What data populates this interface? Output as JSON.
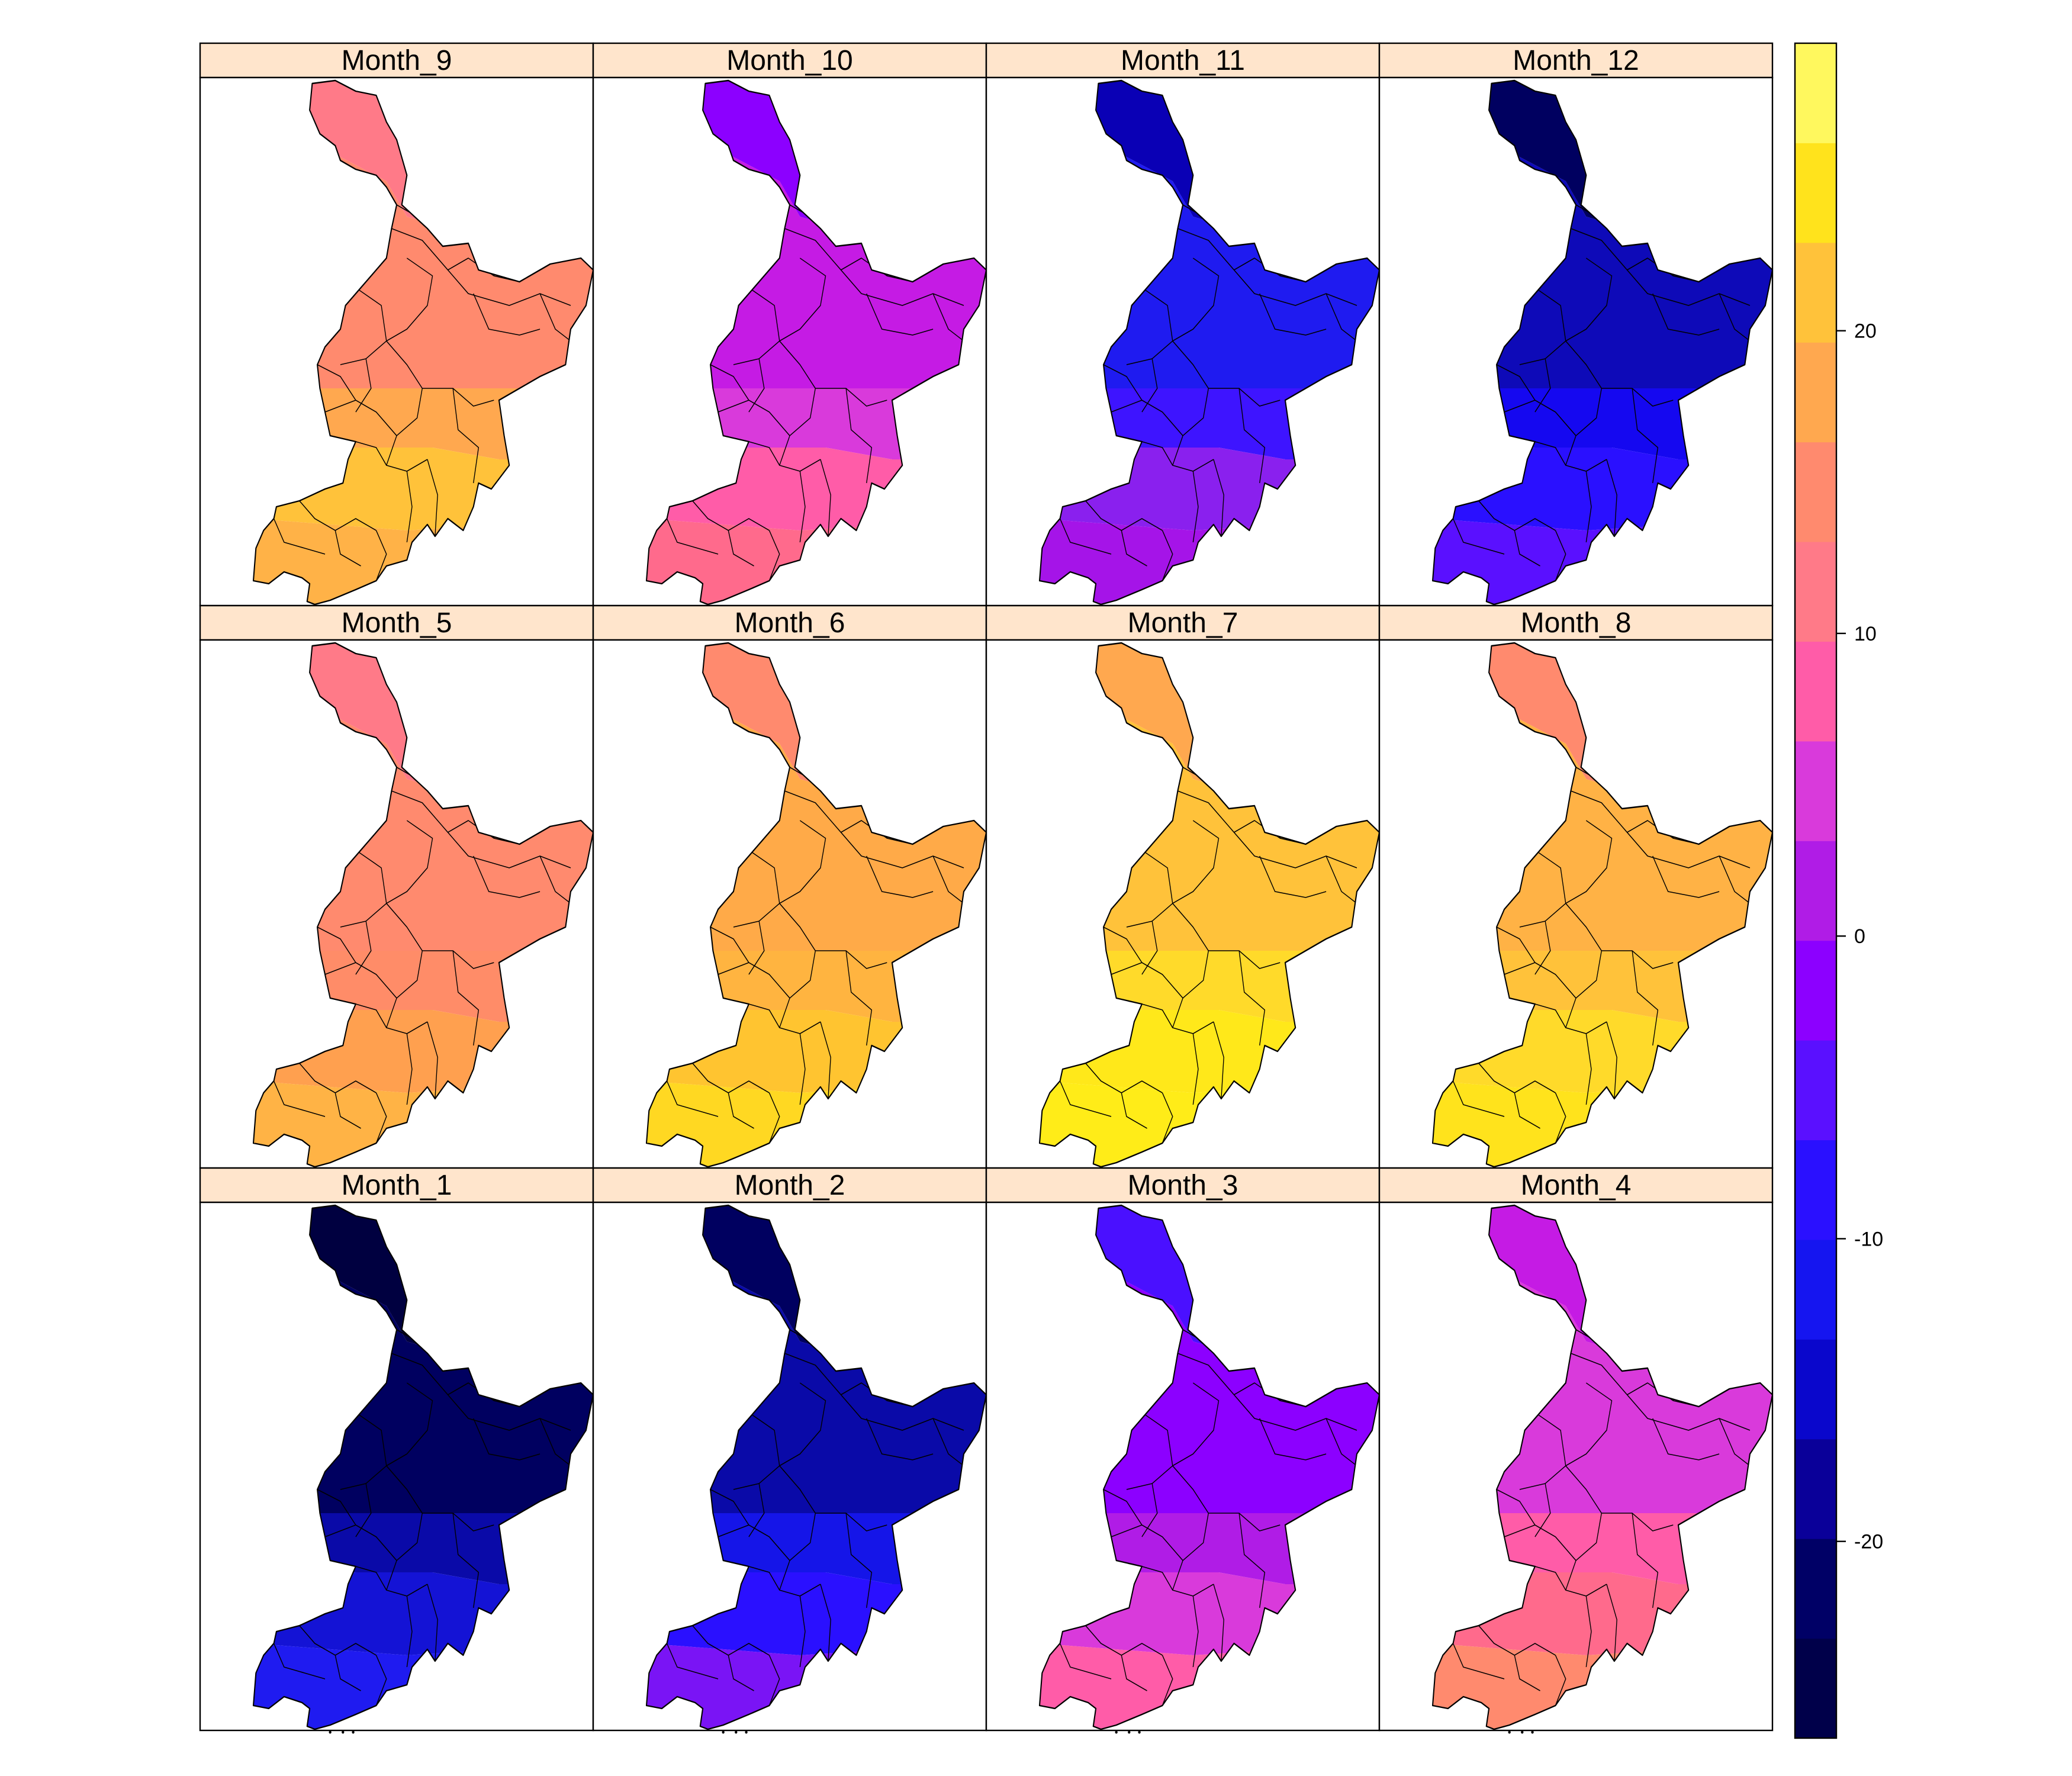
{
  "figure": {
    "panels": [
      {
        "title": "Month_9",
        "colors": [
          "#FF7A88",
          "#FF8A6E",
          "#FFA84F",
          "#FFC23A",
          "#FFB247"
        ]
      },
      {
        "title": "Month_10",
        "colors": [
          "#8C00FF",
          "#C51BE4",
          "#D93ADB",
          "#FF5CA8",
          "#FF6A8C"
        ]
      },
      {
        "title": "Month_11",
        "colors": [
          "#0A00B5",
          "#1F1BF0",
          "#3E14FF",
          "#8A20EE",
          "#A514E8"
        ]
      },
      {
        "title": "Month_12",
        "colors": [
          "#000060",
          "#0E0AB8",
          "#1508F0",
          "#2A10FF",
          "#5A10FF"
        ]
      },
      {
        "title": "Month_5",
        "colors": [
          "#FF7A88",
          "#FF8A6E",
          "#FF8C68",
          "#FFA04F",
          "#FFB345"
        ]
      },
      {
        "title": "Month_6",
        "colors": [
          "#FF8A6E",
          "#FFAA48",
          "#FFB440",
          "#FFC430",
          "#FFD822"
        ]
      },
      {
        "title": "Month_7",
        "colors": [
          "#FFA84F",
          "#FFC23A",
          "#FFDA2A",
          "#FFE81A",
          "#FFEC18"
        ]
      },
      {
        "title": "Month_8",
        "colors": [
          "#FF8A6E",
          "#FFB245",
          "#FFC23A",
          "#FFDA2A",
          "#FFE31C"
        ]
      },
      {
        "title": "Month_1",
        "colors": [
          "#000040",
          "#000060",
          "#0A0AA8",
          "#1413D5",
          "#1F1BF0"
        ]
      },
      {
        "title": "Month_2",
        "colors": [
          "#000060",
          "#0A0AA8",
          "#1515E8",
          "#2A10FF",
          "#7A14F5"
        ]
      },
      {
        "title": "Month_3",
        "colors": [
          "#4A10FF",
          "#8C00FF",
          "#B01CE6",
          "#D93ADB",
          "#FF5CA8"
        ]
      },
      {
        "title": "Month_4",
        "colors": [
          "#C51BE4",
          "#D93ADB",
          "#FF5CA8",
          "#FF6A8C",
          "#FF8A6E"
        ]
      }
    ]
  },
  "colorkey": {
    "ticks": [
      {
        "label": "-20",
        "value": -20
      },
      {
        "label": "-10",
        "value": -10
      },
      {
        "label": "0",
        "value": 0
      },
      {
        "label": "10",
        "value": 10
      },
      {
        "label": "20",
        "value": 20
      }
    ],
    "min": -26.5,
    "max": 29.5,
    "colors": [
      "#00004A",
      "#000066",
      "#0A0099",
      "#0A07CC",
      "#1515F0",
      "#2A10FF",
      "#5A10FF",
      "#8C00FF",
      "#B01CE6",
      "#D93ADB",
      "#FF5CA8",
      "#FF7A88",
      "#FF8A6E",
      "#FFA84F",
      "#FFC23A",
      "#FFE31C",
      "#FFF85E"
    ]
  }
}
